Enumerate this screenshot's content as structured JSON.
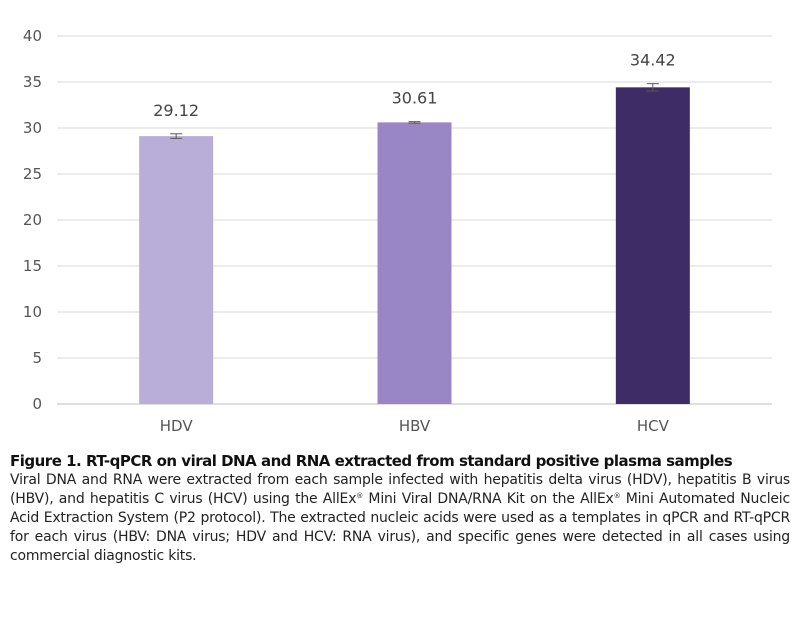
{
  "chart_data": {
    "type": "bar",
    "categories": [
      "HDV",
      "HBV",
      "HCV"
    ],
    "values": [
      29.12,
      30.61,
      34.42
    ],
    "value_labels": [
      "29.12",
      "30.61",
      "34.42"
    ],
    "errors": [
      0.25,
      0.08,
      0.4
    ],
    "colors": [
      "#b8aed7",
      "#9887c4",
      "#3e2c66"
    ],
    "ylim": [
      0,
      40
    ],
    "yticks": [
      "0",
      "5",
      "10",
      "15",
      "20",
      "25",
      "30",
      "35",
      "40"
    ],
    "grid": true,
    "title": "",
    "xlabel": "",
    "ylabel": ""
  },
  "caption": {
    "title": "Figure 1. RT-qPCR on viral DNA and RNA extracted from standard positive plasma samples",
    "body_1": "Viral DNA and RNA were extracted from each sample infected with hepatitis delta virus (HDV), hepatitis B virus (HBV), and hepatitis C virus (HCV) using the AllEx",
    "body_2": " Mini Viral DNA/RNA Kit on the AllEx",
    "body_3": " Mini Automated Nucleic Acid Extraction System (P2 protocol). The extracted nucleic acids were used as a templates in qPCR and RT-qPCR for each virus (HBV: DNA virus; HDV and HCV: RNA virus), and specific genes were detected in all cases using commercial diagnostic kits.",
    "registered_mark": "®"
  }
}
